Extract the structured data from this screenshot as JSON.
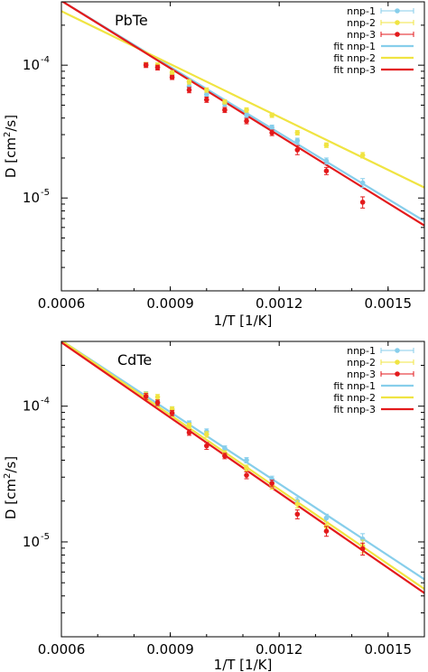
{
  "chart_data": [
    {
      "type": "scatter",
      "title": "PbTe",
      "xlabel": "1/T [1/K]",
      "ylabel_prefix": "D [cm",
      "ylabel_sup": "2",
      "ylabel_suffix": "/s]",
      "x_scale": "linear",
      "y_scale": "log",
      "xlim": [
        0.0006,
        0.0016
      ],
      "ylim": [
        2e-06,
        0.0003
      ],
      "x_ticks": [
        {
          "value": 0.0006,
          "label": "0.0006"
        },
        {
          "value": 0.0009,
          "label": "0.0009"
        },
        {
          "value": 0.0012,
          "label": "0.0012"
        },
        {
          "value": 0.0015,
          "label": "0.0015"
        }
      ],
      "y_ticks": [
        {
          "value": 0.0001,
          "base": "10",
          "exp": "-4"
        },
        {
          "value": 1e-05,
          "base": "10",
          "exp": "-5"
        }
      ],
      "grid": false,
      "legend_position": "top-right",
      "series": [
        {
          "name": "nnp-1",
          "color": "#87CEEB",
          "x": [
            0.000833,
            0.000865,
            0.000905,
            0.000952,
            0.001,
            0.00105,
            0.00111,
            0.00118,
            0.00125,
            0.00133,
            0.00143
          ],
          "y": [
            0.000101,
            9.7e-05,
            8.5e-05,
            6.9e-05,
            6e-05,
            5.1e-05,
            4.2e-05,
            3.4e-05,
            2.7e-05,
            1.9e-05,
            1.3e-05
          ],
          "err": [
            4e-06,
            4e-06,
            3e-06,
            3e-06,
            2.5e-06,
            2e-06,
            1.7e-06,
            1.4e-06,
            1.2e-06,
            1e-06,
            1e-06
          ]
        },
        {
          "name": "nnp-2",
          "color": "#F0E442",
          "x": [
            0.000833,
            0.000865,
            0.000905,
            0.000952,
            0.001,
            0.00105,
            0.00111,
            0.00118,
            0.00125,
            0.00133,
            0.00143
          ],
          "y": [
            0.000101,
            0.0001,
            8.8e-05,
            7.5e-05,
            6.5e-05,
            5.3e-05,
            4.6e-05,
            4.2e-05,
            3.1e-05,
            2.5e-05,
            2.1e-05
          ],
          "err": [
            4e-06,
            4e-06,
            3e-06,
            3e-06,
            2.5e-06,
            2e-06,
            1.8e-06,
            1.6e-06,
            1.2e-06,
            1e-06,
            1e-06
          ]
        },
        {
          "name": "nnp-3",
          "color": "#E31A1C",
          "x": [
            0.000833,
            0.000865,
            0.000905,
            0.000952,
            0.001,
            0.00105,
            0.00111,
            0.00118,
            0.00125,
            0.00133,
            0.00143
          ],
          "y": [
            0.0001,
            9.6e-05,
            8.1e-05,
            6.5e-05,
            5.5e-05,
            4.6e-05,
            3.8e-05,
            3.1e-05,
            2.3e-05,
            1.6e-05,
            9.3e-06
          ],
          "err": [
            4e-06,
            4e-06,
            3e-06,
            3e-06,
            2.5e-06,
            2e-06,
            1.8e-06,
            1.5e-06,
            1.8e-06,
            1e-06,
            9e-07
          ]
        }
      ],
      "fits": [
        {
          "name": "fit nnp-1",
          "color": "#87CEEB",
          "x": [
            0.0006,
            0.0016
          ],
          "y": [
            0.000305,
            6.7e-06
          ]
        },
        {
          "name": "fit nnp-2",
          "color": "#F0E442",
          "x": [
            0.0006,
            0.0016
          ],
          "y": [
            0.000255,
            1.2e-05
          ]
        },
        {
          "name": "fit nnp-3",
          "color": "#E31A1C",
          "x": [
            0.0006,
            0.0016
          ],
          "y": [
            0.000305,
            6.2e-06
          ]
        }
      ]
    },
    {
      "type": "scatter",
      "title": "CdTe",
      "xlabel": "1/T [1/K]",
      "ylabel_prefix": "D [cm",
      "ylabel_sup": "2",
      "ylabel_suffix": "/s]",
      "x_scale": "linear",
      "y_scale": "log",
      "xlim": [
        0.0006,
        0.0016
      ],
      "ylim": [
        2e-06,
        0.0003
      ],
      "x_ticks": [
        {
          "value": 0.0006,
          "label": "0.0006"
        },
        {
          "value": 0.0009,
          "label": "0.0009"
        },
        {
          "value": 0.0012,
          "label": "0.0012"
        },
        {
          "value": 0.0015,
          "label": "0.0015"
        }
      ],
      "y_ticks": [
        {
          "value": 0.0001,
          "base": "10",
          "exp": "-4"
        },
        {
          "value": 1e-05,
          "base": "10",
          "exp": "-5"
        }
      ],
      "grid": false,
      "legend_position": "top-right",
      "series": [
        {
          "name": "nnp-1",
          "color": "#87CEEB",
          "x": [
            0.000833,
            0.000865,
            0.000905,
            0.000952,
            0.001,
            0.00105,
            0.00111,
            0.00118,
            0.00125,
            0.00133,
            0.00143
          ],
          "y": [
            0.000122,
            0.000107,
            9.5e-05,
            7.5e-05,
            6.5e-05,
            4.9e-05,
            4e-05,
            2.9e-05,
            2e-05,
            1.5e-05,
            1.05e-05
          ],
          "err": [
            6e-06,
            5e-06,
            4e-06,
            3e-06,
            3e-06,
            2e-06,
            1.8e-06,
            1.5e-06,
            1.2e-06,
            1e-06,
            1e-06
          ]
        },
        {
          "name": "nnp-2",
          "color": "#F0E442",
          "x": [
            0.000833,
            0.000865,
            0.000905,
            0.000952,
            0.001,
            0.00105,
            0.00111,
            0.00118,
            0.00125,
            0.00133,
            0.00143
          ],
          "y": [
            0.000121,
            0.000117,
            9.5e-05,
            7.2e-05,
            6.2e-05,
            4.5e-05,
            3.5e-05,
            2.6e-05,
            1.9e-05,
            1.3e-05,
            9.3e-06
          ],
          "err": [
            6e-06,
            5e-06,
            4e-06,
            3e-06,
            3e-06,
            2e-06,
            1.8e-06,
            1.5e-06,
            1.2e-06,
            1e-06,
            1e-06
          ]
        },
        {
          "name": "nnp-3",
          "color": "#E31A1C",
          "x": [
            0.000833,
            0.000865,
            0.000905,
            0.000952,
            0.001,
            0.00105,
            0.00111,
            0.00118,
            0.00125,
            0.00133,
            0.00143
          ],
          "y": [
            0.000118,
            0.000106,
            8.9e-05,
            6.4e-05,
            5.1e-05,
            4.3e-05,
            3.1e-05,
            2.7e-05,
            1.6e-05,
            1.2e-05,
            8.9e-06
          ],
          "err": [
            6e-06,
            5e-06,
            4e-06,
            3e-06,
            3e-06,
            2e-06,
            1.8e-06,
            1.5e-06,
            1.2e-06,
            1e-06,
            9e-07
          ]
        }
      ],
      "fits": [
        {
          "name": "fit nnp-1",
          "color": "#87CEEB",
          "x": [
            0.0006,
            0.0016
          ],
          "y": [
            0.000305,
            5.3e-06
          ]
        },
        {
          "name": "fit nnp-2",
          "color": "#F0E442",
          "x": [
            0.0006,
            0.0016
          ],
          "y": [
            0.000305,
            4.5e-06
          ]
        },
        {
          "name": "fit nnp-3",
          "color": "#E31A1C",
          "x": [
            0.0006,
            0.0016
          ],
          "y": [
            0.000295,
            4.2e-06
          ]
        }
      ]
    }
  ]
}
